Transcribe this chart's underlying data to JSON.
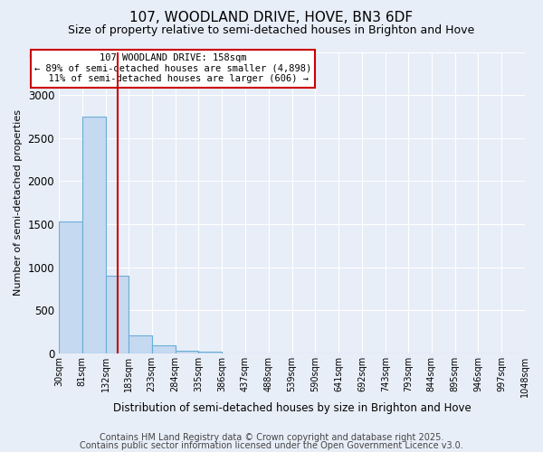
{
  "title": "107, WOODLAND DRIVE, HOVE, BN3 6DF",
  "subtitle": "Size of property relative to semi-detached houses in Brighton and Hove",
  "xlabel": "Distribution of semi-detached houses by size in Brighton and Hove",
  "ylabel": "Number of semi-detached properties",
  "bin_edges": [
    30,
    81,
    132,
    183,
    233,
    284,
    335,
    386,
    437,
    488,
    539,
    590,
    641,
    692,
    743,
    793,
    844,
    895,
    946,
    997,
    1048
  ],
  "bar_heights": [
    1530,
    2750,
    900,
    210,
    90,
    35,
    25,
    0,
    0,
    0,
    0,
    0,
    0,
    0,
    0,
    0,
    0,
    0,
    0,
    0
  ],
  "bar_color": "#c5d9f0",
  "bar_edge_color": "#6aaed6",
  "property_size": 158,
  "red_line_color": "#cc0000",
  "annotation_line1": "107 WOODLAND DRIVE: 158sqm",
  "annotation_line2": "← 89% of semi-detached houses are smaller (4,898)",
  "annotation_line3": "  11% of semi-detached houses are larger (606) →",
  "annotation_box_color": "#ffffff",
  "annotation_border_color": "#cc0000",
  "ylim": [
    0,
    3500
  ],
  "footer_line1": "Contains HM Land Registry data © Crown copyright and database right 2025.",
  "footer_line2": "Contains public sector information licensed under the Open Government Licence v3.0.",
  "background_color": "#e8eef8",
  "grid_color": "#ffffff",
  "title_fontsize": 11,
  "subtitle_fontsize": 9,
  "tick_fontsize": 7,
  "footer_fontsize": 7,
  "ylabel_fontsize": 8,
  "xlabel_fontsize": 8.5
}
